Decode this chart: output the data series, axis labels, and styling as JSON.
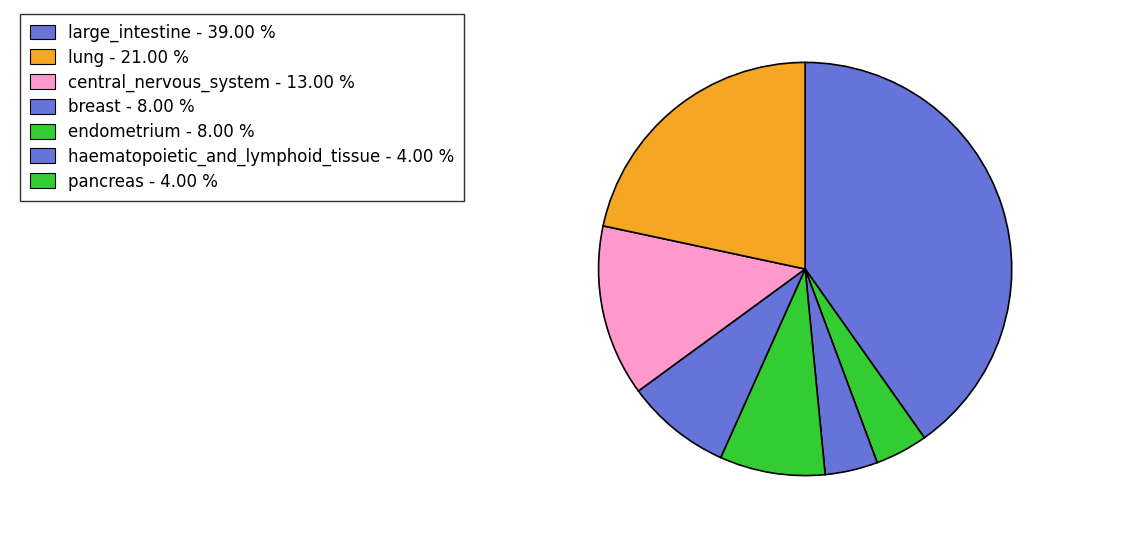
{
  "labels": [
    "large_intestine - 39.00 %",
    "lung - 21.00 %",
    "central_nervous_system - 13.00 %",
    "breast - 8.00 %",
    "endometrium - 8.00 %",
    "haematopoietic_and_lymphoid_tissue - 4.00 %",
    "pancreas - 4.00 %"
  ],
  "values": [
    39,
    21,
    13,
    8,
    8,
    4,
    4
  ],
  "colors": [
    "#6674d9",
    "#f5a623",
    "#ff99cc",
    "#6674d9",
    "#33cc33",
    "#6674d9",
    "#33cc33"
  ],
  "pie_colors_ordered": [
    "#6674d9",
    "#33cc33",
    "#6674d9",
    "#33cc33",
    "#6674d9",
    "#ff99cc",
    "#f5a623"
  ],
  "startangle": 90,
  "legend_fontsize": 12,
  "figsize": [
    11.34,
    5.38
  ],
  "dpi": 100
}
